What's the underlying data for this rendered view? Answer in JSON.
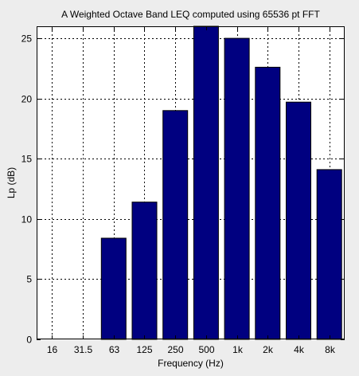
{
  "chart_data": {
    "type": "bar",
    "title": "A Weighted Octave Band LEQ computed using 65536 pt FFT",
    "xlabel": "Frequency (Hz)",
    "ylabel": "Lp (dB)",
    "categories": [
      "16",
      "31.5",
      "63",
      "125",
      "250",
      "500",
      "1k",
      "2k",
      "4k",
      "8k"
    ],
    "values": [
      0,
      0,
      8.4,
      11.4,
      19.0,
      26.0,
      25.0,
      22.6,
      19.7,
      14.1
    ],
    "ylim": [
      0,
      26
    ],
    "yticks": [
      0,
      5,
      10,
      15,
      20,
      25
    ],
    "grid": true,
    "bar_color": "#000080",
    "plot_background": "#ffffff",
    "figure_background": "#ededed"
  }
}
